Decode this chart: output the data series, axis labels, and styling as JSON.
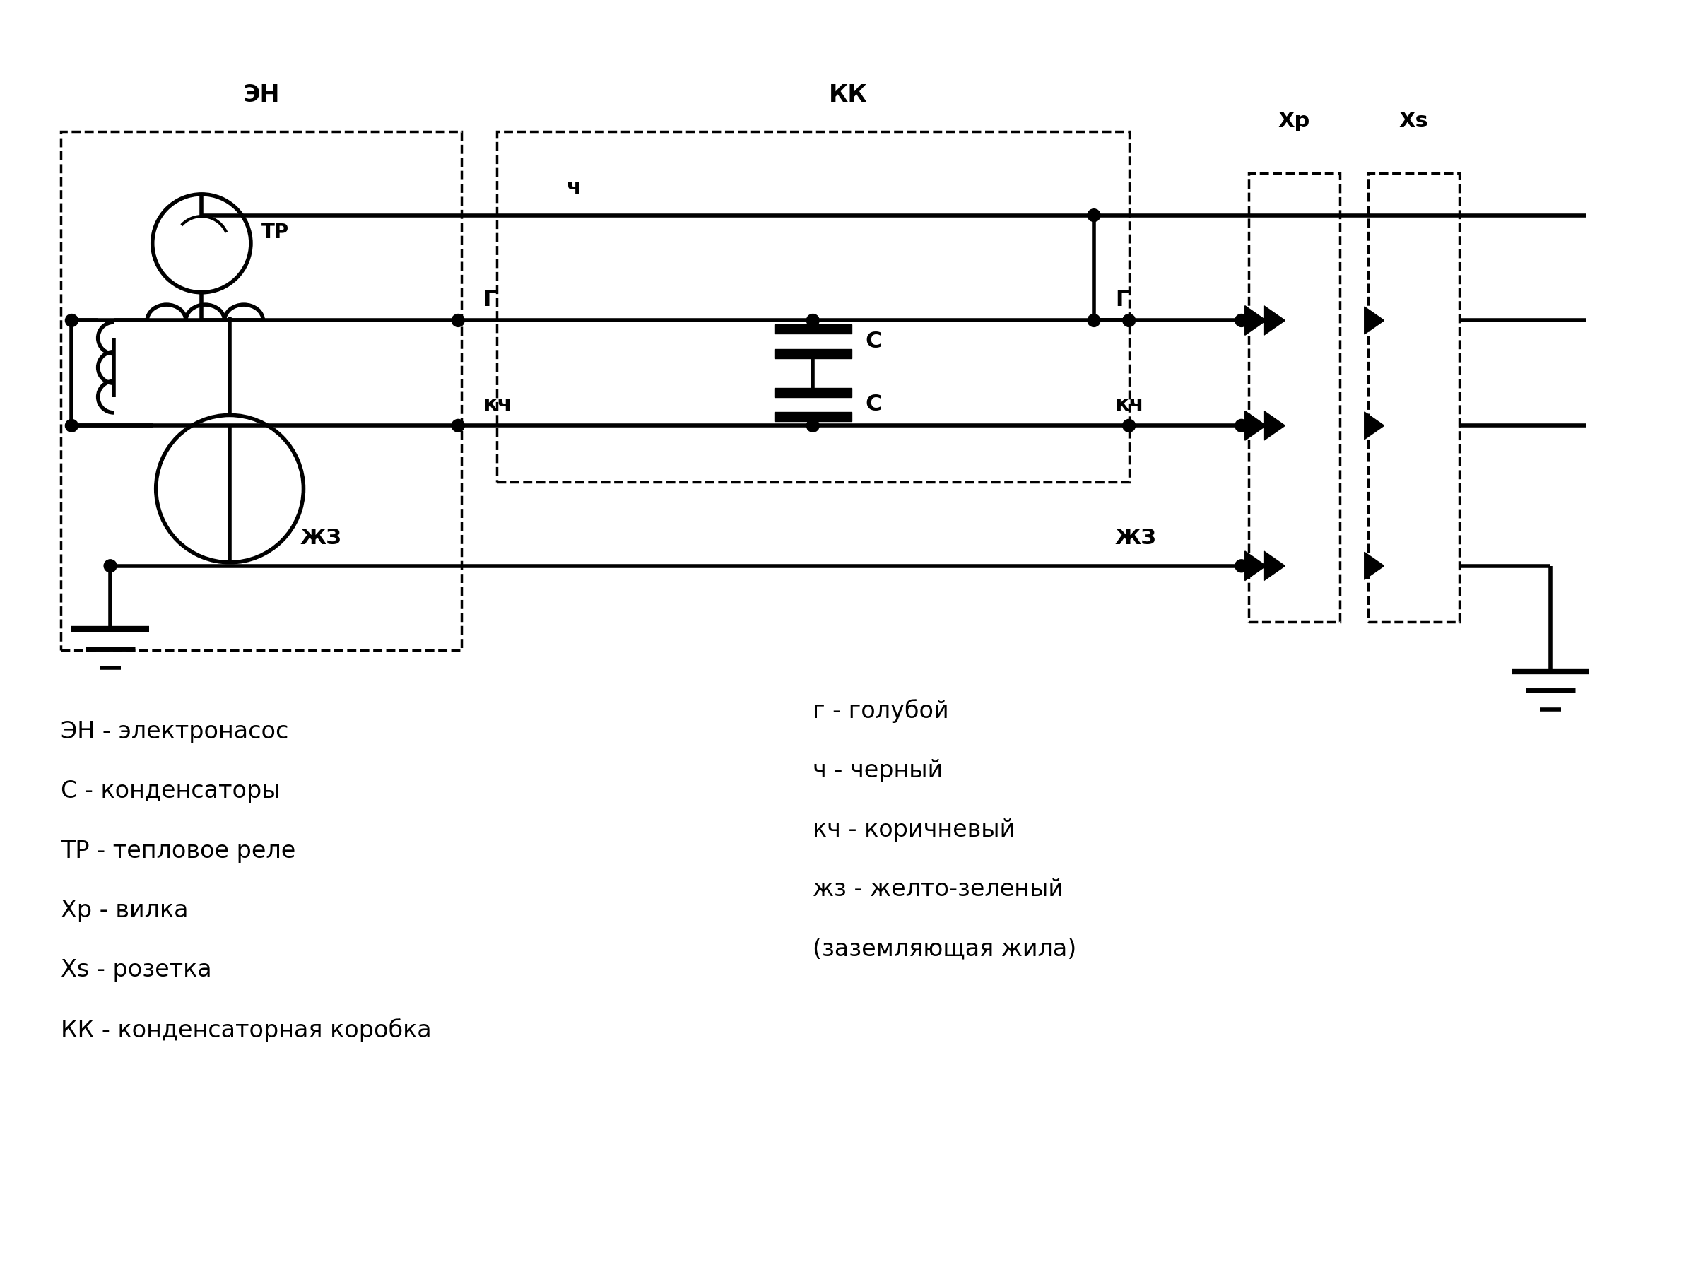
{
  "bg_color": "#ffffff",
  "line_color": "#000000",
  "lw": 4.0,
  "lw_thin": 2.5,
  "dot_r": 0.09,
  "legend_left": [
    "ЭН - электронасос",
    "С - конденсаторы",
    "ТР - тепловое реле",
    "Хр - вилка",
    "Хs - розетка",
    "КК - конденсаторная коробка"
  ],
  "legend_right": [
    "г - голубой",
    "ч - черный",
    "кч - коричневый",
    "жз - желто-зеленый",
    "(заземляющая жила)"
  ],
  "fs_label": 20,
  "fs_small": 18,
  "fs_legend": 24
}
